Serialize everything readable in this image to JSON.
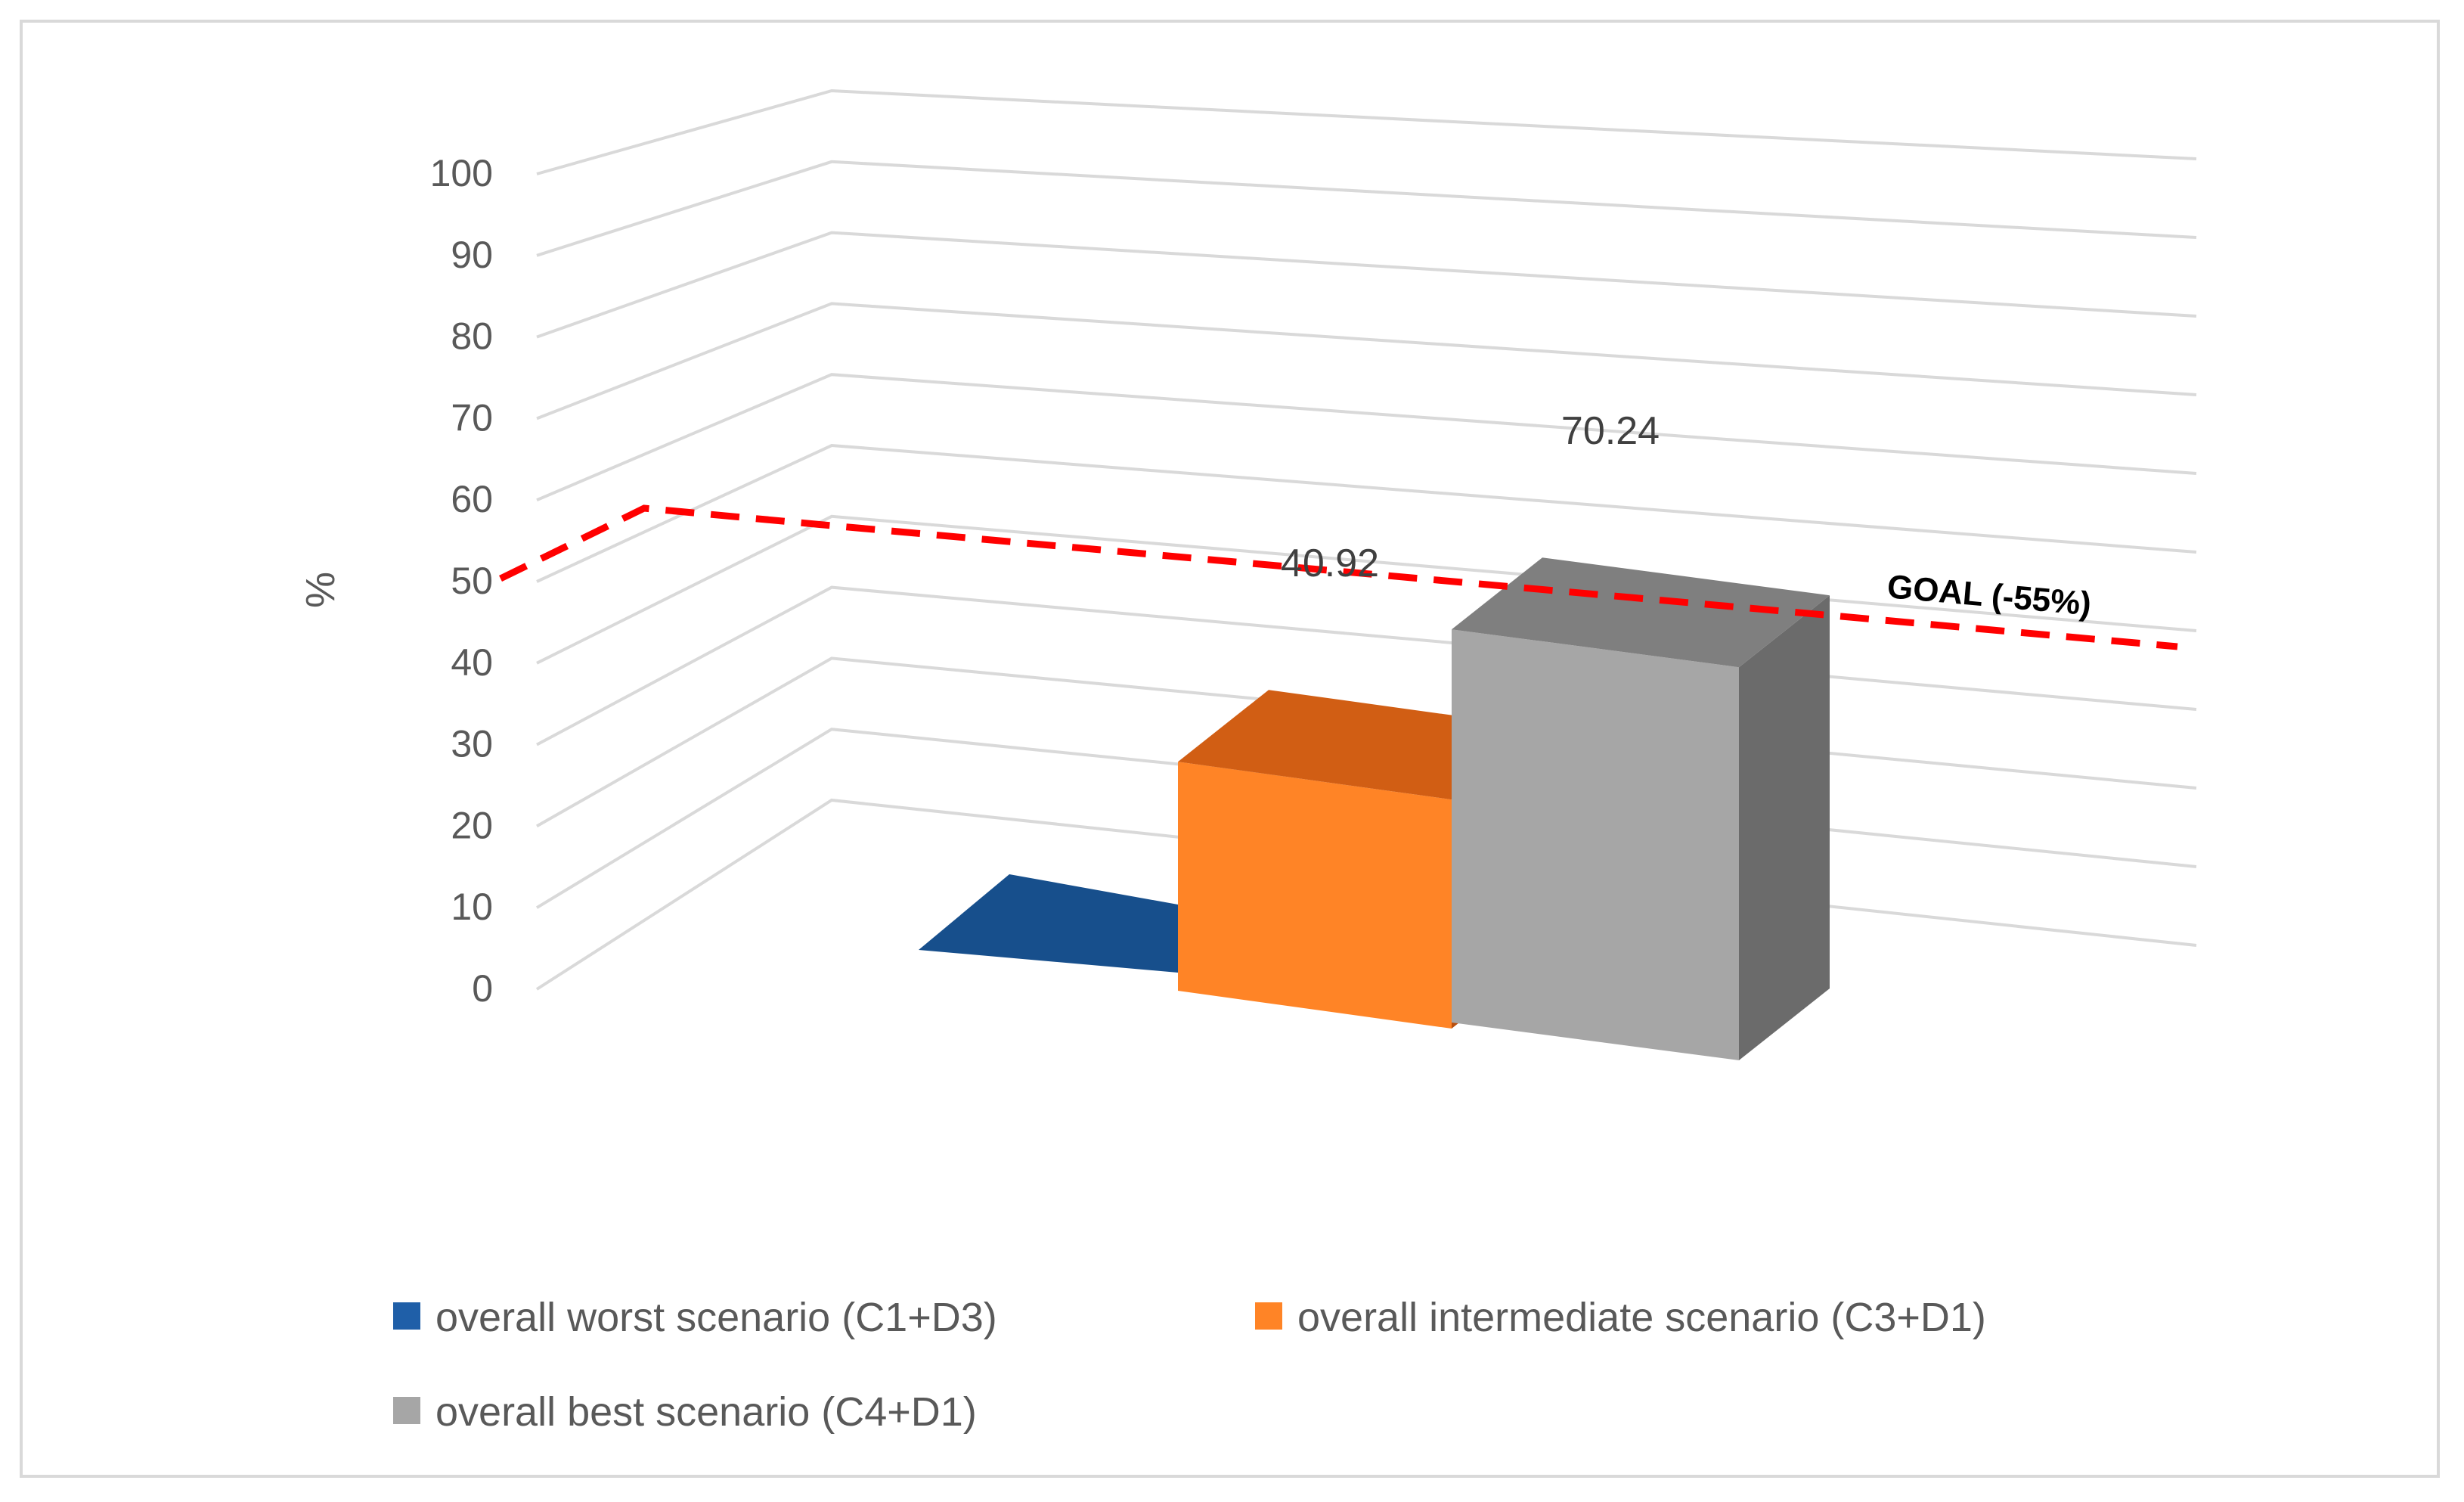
{
  "chart_data": {
    "type": "bar",
    "variant": "3d-column",
    "title": "",
    "ylabel": "%",
    "xlabel": "",
    "ylim": [
      0,
      100
    ],
    "y_ticks": [
      0,
      10,
      20,
      30,
      40,
      50,
      60,
      70,
      80,
      90,
      100
    ],
    "grid": true,
    "series": [
      {
        "name": "overall worst scenario (C1+D3)",
        "value": 0,
        "label": "",
        "color": "#1f5fa8"
      },
      {
        "name": "overall intermediate scenario (C3+D1)",
        "value": 40.92,
        "label": "40.92",
        "color": "#ff8426"
      },
      {
        "name": "overall best scenario (C4+D1)",
        "value": 70.24,
        "label": "70.24",
        "color": "#a6a6a6"
      }
    ],
    "reference_line": {
      "label": "GOAL (-55%)",
      "value": 55,
      "color": "#ff0000",
      "style": "dashed"
    },
    "legend_position": "bottom"
  }
}
